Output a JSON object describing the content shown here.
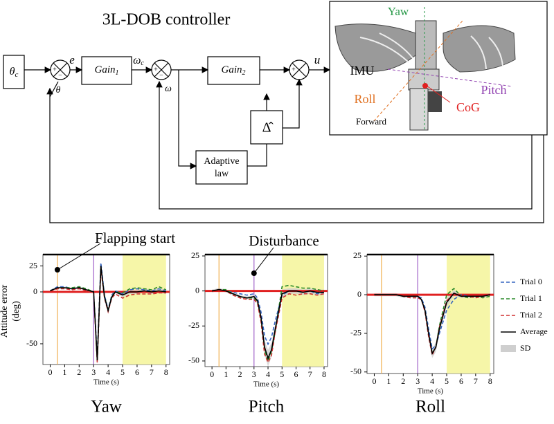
{
  "diagram": {
    "title": "3L-DOB controller",
    "reference": {
      "sym": "θ",
      "sub": "c"
    },
    "error": "e",
    "gain1": {
      "sym": "Gain",
      "sub": "1"
    },
    "omega_c": {
      "sym": "ω",
      "sub": "c"
    },
    "gain2": {
      "sym": "Gain",
      "sub": "2"
    },
    "control": "u",
    "feedback_theta": "θ",
    "feedback_omega": "ω",
    "estimate": "Δ̂",
    "adaptive_law": [
      "Adaptive",
      "law"
    ],
    "signs": {
      "plus": "+",
      "minus": "−"
    },
    "robot": {
      "yaw": "Yaw",
      "imu": "IMU",
      "roll": "Roll",
      "pitch": "Pitch",
      "cog": "CoG",
      "forward": "Forward"
    }
  },
  "chart_data": [
    {
      "type": "line",
      "title": "Yaw",
      "xlabel": "Time (s)",
      "ylabel": "Attitude error (deg)",
      "x": [
        0,
        0.5,
        1,
        1.5,
        2,
        2.5,
        3,
        3.25,
        3.5,
        3.75,
        4,
        4.25,
        4.5,
        5,
        5.5,
        6,
        6.5,
        7,
        7.5,
        8
      ],
      "xlim": [
        -0.5,
        8.25
      ],
      "xticks": [
        0,
        1,
        2,
        3,
        4,
        5,
        6,
        7,
        8
      ],
      "ylim": [
        -70,
        36
      ],
      "yticks": [
        25,
        0,
        -50
      ],
      "vlines": [
        {
          "x": 0.5,
          "color": "#f0b050"
        },
        {
          "x": 3,
          "color": "#a060c8"
        }
      ],
      "shaded": {
        "x": [
          5,
          8
        ],
        "color": "#f6f6a8"
      },
      "hline": {
        "y": 0,
        "color": "#e02020"
      },
      "annotation": {
        "text": "Flapping start",
        "x": 0.5
      },
      "series": [
        {
          "color": "#3565c0",
          "style": "dashed",
          "values": [
            1,
            5,
            5,
            3,
            4,
            2,
            0,
            -62,
            28,
            -3,
            -17,
            -3,
            1,
            -2,
            2,
            3,
            2,
            1,
            3,
            1
          ]
        },
        {
          "color": "#2a8a2a",
          "style": "dashed",
          "values": [
            1,
            4,
            4,
            4,
            5,
            3,
            0,
            -65,
            24,
            -4,
            -18,
            -4,
            0,
            -1,
            3,
            4,
            3,
            2,
            5,
            2
          ]
        },
        {
          "color": "#d03030",
          "style": "dashed",
          "values": [
            1,
            3,
            3,
            2,
            3,
            1,
            -1,
            -68,
            22,
            -6,
            -19,
            -6,
            -2,
            -6,
            -3,
            -2,
            -2,
            -2,
            -1,
            -1
          ]
        },
        {
          "color": "#000000",
          "style": "solid",
          "values": [
            1,
            4,
            4,
            3,
            4,
            2,
            0,
            -66,
            25,
            -5,
            -18,
            -5,
            0,
            -3,
            0,
            0,
            1,
            0,
            1,
            0
          ]
        }
      ],
      "sd": {
        "color": "#cfcfcf",
        "values": [
          1,
          1,
          1,
          1,
          1,
          1,
          1,
          4,
          3,
          2,
          2,
          2,
          1,
          2,
          2,
          2,
          2,
          2,
          2,
          2
        ]
      }
    },
    {
      "type": "line",
      "title": "Pitch",
      "xlabel": "Time (s)",
      "x": [
        0,
        0.5,
        1,
        1.5,
        2,
        2.5,
        3,
        3.25,
        3.5,
        3.75,
        4,
        4.25,
        4.5,
        5,
        5.5,
        6,
        6.5,
        7,
        7.5,
        8
      ],
      "xlim": [
        -0.5,
        8.25
      ],
      "xticks": [
        0,
        1,
        2,
        3,
        4,
        5,
        6,
        7,
        8
      ],
      "ylim": [
        -54,
        26
      ],
      "yticks": [
        25,
        0,
        -25,
        -50
      ],
      "vlines": [
        {
          "x": 0.5,
          "color": "#f0b050"
        },
        {
          "x": 3,
          "color": "#a060c8"
        }
      ],
      "shaded": {
        "x": [
          5,
          8
        ],
        "color": "#f6f6a8"
      },
      "hline": {
        "y": 0,
        "color": "#e02020"
      },
      "annotation": {
        "text": "Disturbance",
        "x": 3
      },
      "series": [
        {
          "color": "#3565c0",
          "style": "dashed",
          "values": [
            0,
            1,
            0,
            -1,
            -2,
            -3,
            -2,
            -5,
            -15,
            -32,
            -38,
            -33,
            -22,
            -3,
            0,
            0,
            -1,
            0,
            -2,
            -1
          ]
        },
        {
          "color": "#2a8a2a",
          "style": "dashed",
          "values": [
            0,
            1,
            1,
            -2,
            -4,
            -5,
            -5,
            -8,
            -20,
            -42,
            -50,
            -43,
            -30,
            3,
            4,
            3,
            2,
            2,
            1,
            0
          ]
        },
        {
          "color": "#d03030",
          "style": "dashed",
          "values": [
            0,
            1,
            0,
            -3,
            -5,
            -6,
            -6,
            -9,
            -22,
            -45,
            -51,
            -46,
            -30,
            -5,
            -2,
            -3,
            -2,
            -2,
            -3,
            -2
          ]
        },
        {
          "color": "#000000",
          "style": "solid",
          "values": [
            0,
            1,
            0,
            -2,
            -4,
            -5,
            -4,
            -7,
            -19,
            -40,
            -48,
            -42,
            -28,
            -2,
            0,
            0,
            -1,
            0,
            -1,
            -1
          ]
        }
      ],
      "sd": {
        "color": "#cfcfcf",
        "values": [
          1,
          1,
          1,
          1,
          1,
          1,
          1,
          2,
          3,
          5,
          6,
          5,
          4,
          3,
          2,
          2,
          2,
          2,
          2,
          2
        ]
      }
    },
    {
      "type": "line",
      "title": "Roll",
      "xlabel": "Time (s)",
      "x": [
        0,
        0.5,
        1,
        1.5,
        2,
        2.5,
        3,
        3.25,
        3.5,
        3.75,
        4,
        4.25,
        4.5,
        5,
        5.5,
        6,
        6.5,
        7,
        7.5,
        8
      ],
      "xlim": [
        -0.5,
        8.25
      ],
      "xticks": [
        0,
        1,
        2,
        3,
        4,
        5,
        6,
        7,
        8
      ],
      "ylim": [
        -51,
        26
      ],
      "yticks": [
        25,
        0,
        -25,
        -50
      ],
      "vlines": [
        {
          "x": 0.5,
          "color": "#f0b050"
        },
        {
          "x": 3,
          "color": "#a060c8"
        }
      ],
      "shaded": {
        "x": [
          5,
          8
        ],
        "color": "#f6f6a8"
      },
      "hline": {
        "y": 0,
        "color": "#e02020"
      },
      "legend": "right",
      "series": [
        {
          "name": "Trial 0",
          "color": "#3565c0",
          "style": "dashed",
          "values": [
            0,
            0,
            0,
            0,
            -1,
            -1,
            -1,
            -2,
            -8,
            -22,
            -35,
            -33,
            -25,
            -10,
            -3,
            0,
            -1,
            -1,
            -1,
            0
          ]
        },
        {
          "name": "Trial 1",
          "color": "#2a8a2a",
          "style": "dashed",
          "values": [
            0,
            0,
            0,
            0,
            -1,
            -1,
            -1,
            -3,
            -10,
            -26,
            -38,
            -34,
            -20,
            0,
            4,
            -1,
            -2,
            -1,
            -2,
            -1
          ]
        },
        {
          "name": "Trial 2",
          "color": "#d03030",
          "style": "dashed",
          "values": [
            0,
            0,
            0,
            0,
            -1,
            -2,
            -2,
            -3,
            -11,
            -27,
            -39,
            -34,
            -21,
            -4,
            1,
            -1,
            -1,
            -2,
            -1,
            0
          ]
        },
        {
          "name": "Average",
          "color": "#000000",
          "style": "solid",
          "values": [
            0,
            0,
            0,
            0,
            -1,
            -1,
            -1,
            -3,
            -10,
            -25,
            -38,
            -34,
            -22,
            -5,
            1,
            -1,
            -1,
            -1,
            -1,
            0
          ]
        }
      ],
      "sd": {
        "name": "SD",
        "color": "#cfcfcf",
        "values": [
          1,
          1,
          1,
          1,
          1,
          1,
          1,
          1,
          2,
          3,
          3,
          3,
          3,
          3,
          2,
          1,
          1,
          1,
          1,
          1
        ]
      }
    }
  ]
}
